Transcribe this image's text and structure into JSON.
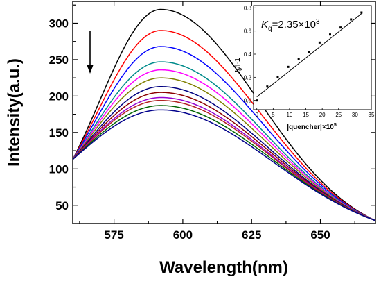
{
  "chart_data": [
    {
      "type": "line",
      "title": "",
      "xlabel": "Wavelength(nm)",
      "ylabel": "Intensity(a.u.)",
      "xlim": [
        560,
        670
      ],
      "ylim": [
        25,
        330
      ],
      "x_ticks": [
        575,
        600,
        625,
        650
      ],
      "y_ticks": [
        50,
        100,
        150,
        200,
        250,
        300
      ],
      "arrow_direction": "down",
      "peak_wavelength": 592,
      "start_intensity_at_560": 113,
      "end_intensity_at_670": 29,
      "series": [
        {
          "color": "#000000",
          "peak": 319
        },
        {
          "color": "#ff0000",
          "peak": 290
        },
        {
          "color": "#0000ff",
          "peak": 268
        },
        {
          "color": "#008b8b",
          "peak": 247
        },
        {
          "color": "#ff00ff",
          "peak": 236
        },
        {
          "color": "#808000",
          "peak": 225
        },
        {
          "color": "#000080",
          "peak": 213
        },
        {
          "color": "#8b0000",
          "peak": 205
        },
        {
          "color": "#9400d3",
          "peak": 198
        },
        {
          "color": "#b22222",
          "peak": 194
        },
        {
          "color": "#006400",
          "peak": 187
        },
        {
          "color": "#00008b",
          "peak": 181
        }
      ]
    },
    {
      "type": "scatter",
      "inset": true,
      "annotation": "K_q=2.35×10^3",
      "annotation_parts": {
        "k": "K",
        "sub": "q",
        "eq": "=2.35×10",
        "sup": "3"
      },
      "ylabel_parts": {
        "i": "I",
        "sub": "0",
        "rest": "/I-1"
      },
      "xlabel_parts": {
        "text": "|quencher|×10",
        "sup": "5"
      },
      "xlim": [
        -1,
        35
      ],
      "ylim": [
        -0.08,
        0.82
      ],
      "x_ticks": [
        0,
        5,
        10,
        15,
        20,
        25,
        30,
        35
      ],
      "y_ticks": [
        0.0,
        0.2,
        0.4,
        0.6,
        0.8
      ],
      "x_tick_labels": [
        "0",
        "5",
        "10",
        "15",
        "20",
        "25",
        "30",
        "35"
      ],
      "y_tick_labels": [
        "0.0",
        "0.2",
        "0.4",
        "0.6",
        "0.8"
      ],
      "x": [
        0,
        3.2,
        6.4,
        9.6,
        12.8,
        16,
        19.2,
        22.4,
        25.6,
        28.8,
        32
      ],
      "y": [
        0,
        0.12,
        0.2,
        0.29,
        0.36,
        0.42,
        0.5,
        0.57,
        0.63,
        0.7,
        0.76
      ],
      "fit_line": {
        "x": [
          0,
          32
        ],
        "y": [
          0.03,
          0.75
        ]
      }
    }
  ]
}
